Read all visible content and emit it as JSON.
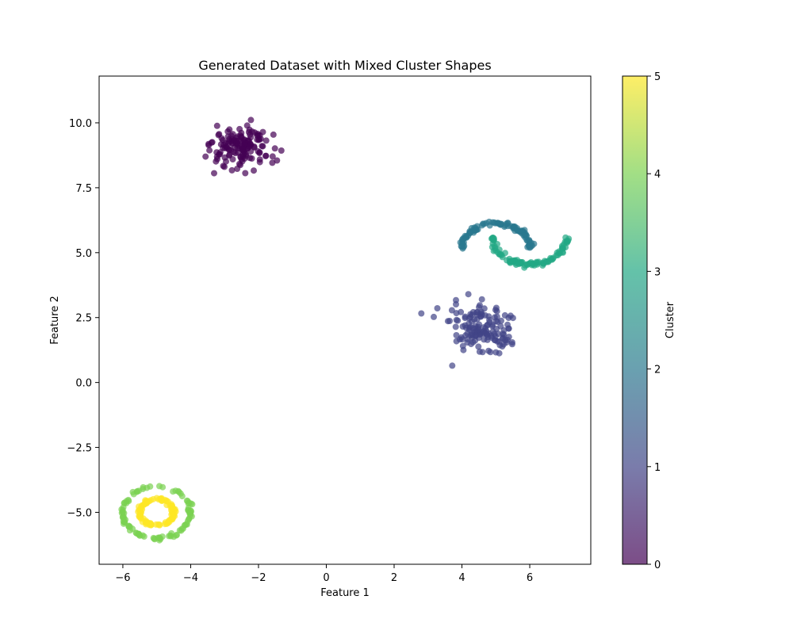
{
  "chart_data": {
    "type": "scatter",
    "title": "Generated Dataset with Mixed Cluster Shapes",
    "xlabel": "Feature 1",
    "ylabel": "Feature 2",
    "xlim": [
      -6.7,
      7.8
    ],
    "ylim": [
      -7.0,
      11.8
    ],
    "xticks": [
      -6,
      -4,
      -2,
      0,
      2,
      4,
      6
    ],
    "xtick_labels": [
      "−6",
      "−4",
      "−2",
      "0",
      "2",
      "4",
      "6"
    ],
    "yticks": [
      -5.0,
      -2.5,
      0.0,
      2.5,
      5.0,
      7.5,
      10.0
    ],
    "ytick_labels": [
      "−5.0",
      "−2.5",
      "0.0",
      "2.5",
      "5.0",
      "7.5",
      "10.0"
    ],
    "grid": false,
    "colormap": "viridis",
    "point_alpha": 0.7,
    "colorbar": {
      "label": "Cluster",
      "range": [
        0,
        5
      ],
      "ticks": [
        0,
        1,
        2,
        3,
        4,
        5
      ],
      "tick_labels": [
        "0",
        "1",
        "2",
        "3",
        "4",
        "5"
      ]
    },
    "clusters": [
      {
        "cluster": 0,
        "shape": "gaussian blob",
        "center": [
          -2.5,
          9.0
        ],
        "spread": 0.45,
        "count": 150
      },
      {
        "cluster": 1,
        "shape": "gaussian blob",
        "center": [
          4.6,
          2.0
        ],
        "spread": 0.45,
        "count": 150
      },
      {
        "cluster": 2,
        "shape": "upper half moon",
        "center": [
          5.0,
          5.2
        ],
        "radius": 1.0,
        "count": 100
      },
      {
        "cluster": 3,
        "shape": "lower half moon",
        "center": [
          6.0,
          5.6
        ],
        "radius": 1.1,
        "count": 100
      },
      {
        "cluster": 4,
        "shape": "outer ring",
        "center": [
          -5.0,
          -5.0
        ],
        "radius": 1.0,
        "count": 100
      },
      {
        "cluster": 5,
        "shape": "inner ring",
        "center": [
          -5.0,
          -5.0
        ],
        "radius": 0.5,
        "count": 100
      }
    ]
  }
}
